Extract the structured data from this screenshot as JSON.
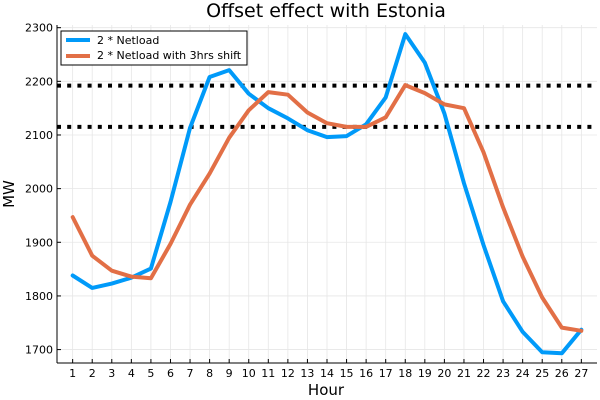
{
  "chart_data": {
    "type": "line",
    "title": "Offset effect with Estonia",
    "xlabel": "Hour",
    "ylabel": "MW",
    "xlim": [
      0.2,
      27.8
    ],
    "ylim": [
      1675,
      2305
    ],
    "xticks": [
      1,
      2,
      3,
      4,
      5,
      6,
      7,
      8,
      9,
      10,
      11,
      12,
      13,
      14,
      15,
      16,
      17,
      18,
      19,
      20,
      21,
      22,
      23,
      24,
      25,
      26,
      27
    ],
    "yticks": [
      1700,
      1800,
      1900,
      2000,
      2100,
      2200,
      2300
    ],
    "grid": true,
    "legend": "top-left",
    "series": [
      {
        "name": "2 * Netload",
        "color": "#009af9",
        "x": [
          1,
          2,
          3,
          4,
          5,
          6,
          7,
          8,
          9,
          10,
          11,
          12,
          13,
          14,
          15,
          16,
          17,
          18,
          19,
          20,
          21,
          22,
          23,
          24,
          25,
          26,
          27
        ],
        "values": [
          1838,
          1815,
          1823,
          1834,
          1851,
          1975,
          2113,
          2208,
          2221,
          2177,
          2150,
          2131,
          2109,
          2096,
          2098,
          2120,
          2170,
          2288,
          2235,
          2140,
          2010,
          1895,
          1790,
          1733,
          1695,
          1693,
          1737
        ]
      },
      {
        "name": "2 * Netload with 3hrs shift",
        "color": "#e26f46",
        "x": [
          1,
          2,
          3,
          4,
          5,
          6,
          7,
          8,
          9,
          10,
          11,
          12,
          13,
          14,
          15,
          16,
          17,
          18,
          19,
          20,
          21,
          22,
          23,
          24,
          25,
          26,
          27
        ],
        "values": [
          1947,
          1875,
          1847,
          1836,
          1833,
          1897,
          1970,
          2028,
          2095,
          2146,
          2180,
          2175,
          2142,
          2122,
          2115,
          2115,
          2133,
          2193,
          2178,
          2157,
          2150,
          2068,
          1965,
          1873,
          1797,
          1741,
          1735
        ]
      }
    ],
    "hlines": [
      {
        "y": 2192,
        "style": "dotted",
        "color": "#000000"
      },
      {
        "y": 2115,
        "style": "dotted",
        "color": "#000000"
      }
    ]
  }
}
